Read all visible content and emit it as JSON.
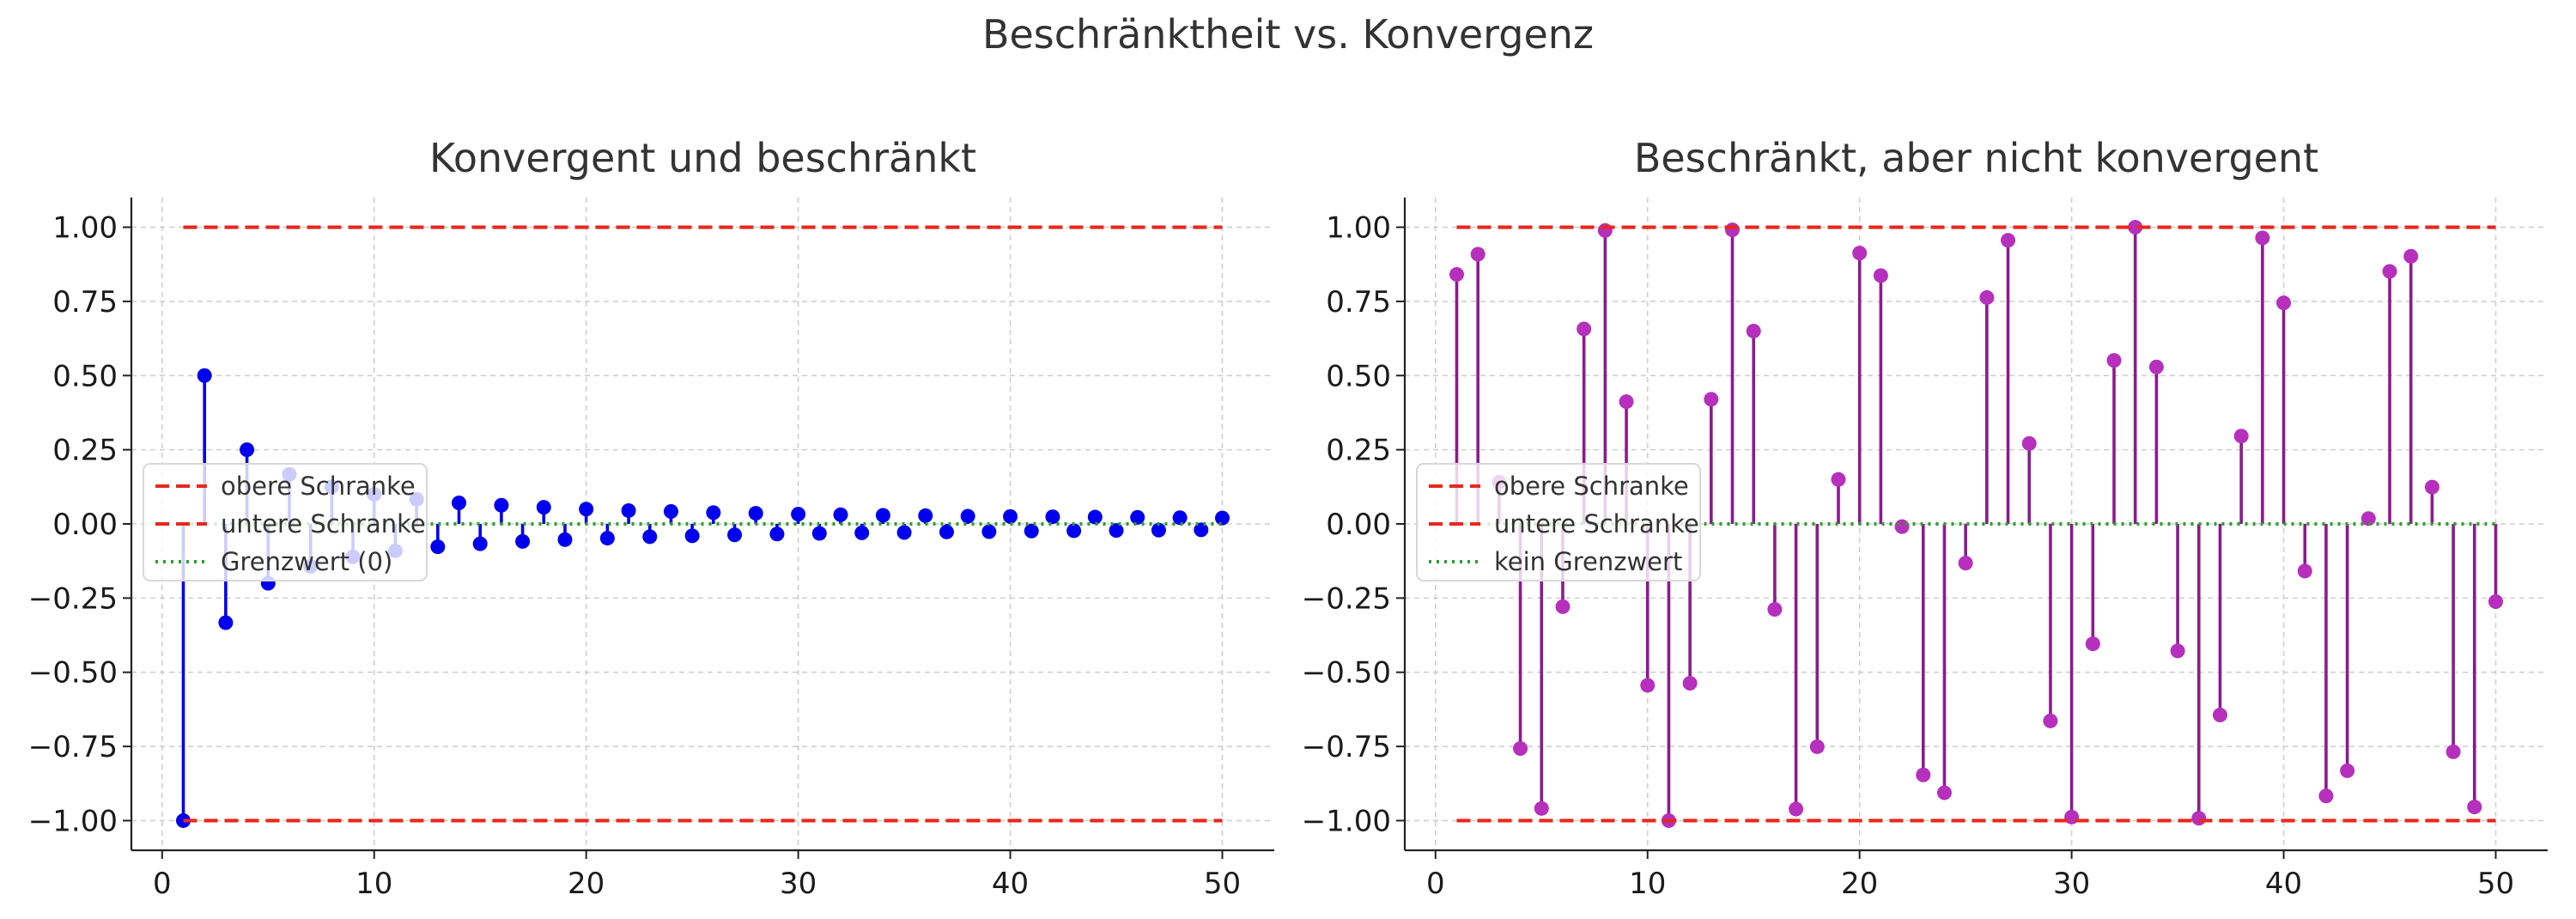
{
  "figure": {
    "title": "Beschränktheit vs. Konvergenz"
  },
  "chart_data": [
    {
      "type": "stem",
      "title": "Konvergent und beschränkt",
      "xlabel": "",
      "ylabel": "",
      "xlim": [
        -1.45,
        52.45
      ],
      "ylim": [
        -1.1,
        1.1
      ],
      "xticks": [
        0,
        10,
        20,
        30,
        40,
        50
      ],
      "yticks": [
        -1.0,
        -0.75,
        -0.5,
        -0.25,
        0.0,
        0.25,
        0.5,
        0.75,
        1.0
      ],
      "ytick_labels": [
        "−1.00",
        "−0.75",
        "−0.50",
        "−0.25",
        "0.00",
        "0.25",
        "0.50",
        "0.75",
        "1.00"
      ],
      "grid": true,
      "legend_position": "center-left",
      "legend": [
        "obere Schranke",
        "untere Schranke",
        "Grenzwert (0)"
      ],
      "series": [
        {
          "kind": "stem",
          "color": "#0000ee",
          "x": [
            1,
            2,
            3,
            4,
            5,
            6,
            7,
            8,
            9,
            10,
            11,
            12,
            13,
            14,
            15,
            16,
            17,
            18,
            19,
            20,
            21,
            22,
            23,
            24,
            25,
            26,
            27,
            28,
            29,
            30,
            31,
            32,
            33,
            34,
            35,
            36,
            37,
            38,
            39,
            40,
            41,
            42,
            43,
            44,
            45,
            46,
            47,
            48,
            49,
            50
          ],
          "y": [
            -1.0,
            0.5,
            -0.333,
            0.25,
            -0.2,
            0.167,
            -0.143,
            0.125,
            -0.111,
            0.1,
            -0.091,
            0.083,
            -0.077,
            0.071,
            -0.067,
            0.063,
            -0.059,
            0.056,
            -0.053,
            0.05,
            -0.048,
            0.045,
            -0.043,
            0.042,
            -0.04,
            0.038,
            -0.037,
            0.036,
            -0.034,
            0.033,
            -0.032,
            0.031,
            -0.03,
            0.029,
            -0.029,
            0.028,
            -0.027,
            0.026,
            -0.026,
            0.025,
            -0.024,
            0.024,
            -0.023,
            0.023,
            -0.022,
            0.022,
            -0.021,
            0.021,
            -0.02,
            0.02
          ]
        },
        {
          "kind": "hline",
          "name": "obere Schranke",
          "y": 1.0,
          "xrange": [
            1,
            50
          ],
          "color": "#e8281e",
          "style": "dashed"
        },
        {
          "kind": "hline",
          "name": "untere Schranke",
          "y": -1.0,
          "xrange": [
            1,
            50
          ],
          "color": "#e8281e",
          "style": "dashed"
        },
        {
          "kind": "hline",
          "name": "Grenzwert (0)",
          "y": 0.0,
          "xrange": [
            1,
            50
          ],
          "color": "#2ca02c",
          "style": "dotted"
        }
      ]
    },
    {
      "type": "stem",
      "title": "Beschränkt, aber nicht konvergent",
      "xlabel": "",
      "ylabel": "",
      "xlim": [
        -1.45,
        52.45
      ],
      "ylim": [
        -1.1,
        1.1
      ],
      "xticks": [
        0,
        10,
        20,
        30,
        40,
        50
      ],
      "yticks": [
        -1.0,
        -0.75,
        -0.5,
        -0.25,
        0.0,
        0.25,
        0.5,
        0.75,
        1.0
      ],
      "ytick_labels": [
        "−1.00",
        "−0.75",
        "−0.50",
        "−0.25",
        "0.00",
        "0.25",
        "0.50",
        "0.75",
        "1.00"
      ],
      "grid": true,
      "legend_position": "center-left",
      "legend": [
        "obere Schranke",
        "untere Schranke",
        "kein Grenzwert"
      ],
      "series": [
        {
          "kind": "stem",
          "color": "#8b1a8f",
          "marker_color": "#b62fbd",
          "x": [
            1,
            2,
            3,
            4,
            5,
            6,
            7,
            8,
            9,
            10,
            11,
            12,
            13,
            14,
            15,
            16,
            17,
            18,
            19,
            20,
            21,
            22,
            23,
            24,
            25,
            26,
            27,
            28,
            29,
            30,
            31,
            32,
            33,
            34,
            35,
            36,
            37,
            38,
            39,
            40,
            41,
            42,
            43,
            44,
            45,
            46,
            47,
            48,
            49,
            50
          ],
          "y": [
            0.841,
            0.909,
            0.141,
            -0.757,
            -0.959,
            -0.279,
            0.657,
            0.989,
            0.412,
            -0.544,
            -1.0,
            -0.537,
            0.42,
            0.991,
            0.65,
            -0.288,
            -0.961,
            -0.751,
            0.15,
            0.913,
            0.837,
            -0.009,
            -0.846,
            -0.906,
            -0.132,
            0.763,
            0.956,
            0.271,
            -0.664,
            -0.988,
            -0.404,
            0.551,
            1.0,
            0.529,
            -0.428,
            -0.992,
            -0.644,
            0.296,
            0.964,
            0.745,
            -0.159,
            -0.917,
            -0.832,
            0.018,
            0.851,
            0.902,
            0.124,
            -0.768,
            -0.954,
            -0.262
          ]
        },
        {
          "kind": "hline",
          "name": "obere Schranke",
          "y": 1.0,
          "xrange": [
            1,
            50
          ],
          "color": "#e8281e",
          "style": "dashed"
        },
        {
          "kind": "hline",
          "name": "untere Schranke",
          "y": -1.0,
          "xrange": [
            1,
            50
          ],
          "color": "#e8281e",
          "style": "dashed"
        },
        {
          "kind": "hline",
          "name": "kein Grenzwert",
          "y": 0.0,
          "xrange": [
            1,
            50
          ],
          "color": "#2ca02c",
          "style": "dotted"
        }
      ]
    }
  ]
}
